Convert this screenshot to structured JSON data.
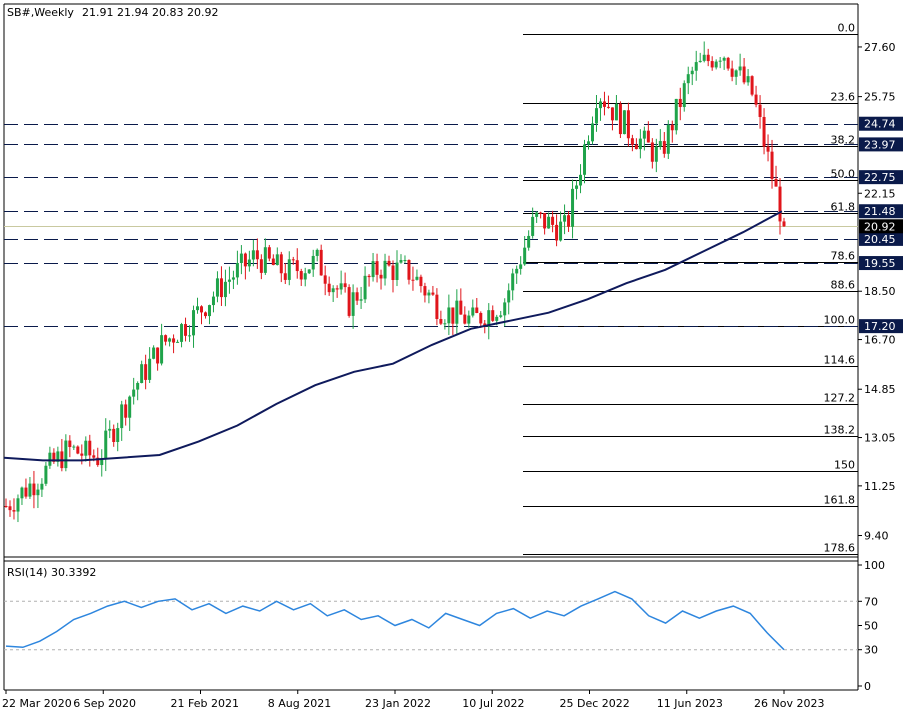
{
  "header": {
    "symbol": "SB#,Weekly",
    "ohlc": "21.91 21.94 20.83 20.92"
  },
  "colors": {
    "bull": "#1fa34a",
    "bear": "#e0151b",
    "ma": "#0f1a5c",
    "fib": "#000000",
    "hline": "#0a1a4a",
    "price_tag_bg": "#0a1a4a",
    "current_tag_bg": "#000000",
    "rsi": "#2e86de",
    "rsi_level": "#b0b0b0"
  },
  "chart_data": [
    {
      "type": "candlestick",
      "title": "SB#,Weekly",
      "ylim": [
        8.6,
        29.2
      ],
      "price_axis_ticks": [
        "27.60",
        "25.75",
        "22.15",
        "18.50",
        "16.70",
        "14.85",
        "13.05",
        "11.25",
        "9.40"
      ],
      "x_tick_labels": [
        "22 Mar 2020",
        "6 Sep 2020",
        "21 Feb 2021",
        "8 Aug 2021",
        "23 Jan 2022",
        "10 Jul 2022",
        "25 Dec 2022",
        "11 Jun 2023",
        "26 Nov 2023"
      ],
      "close_anchors": [
        10.5,
        11.5,
        12.6,
        12.3,
        14.7,
        16.5,
        17.5,
        18.8,
        19.8,
        19.2,
        19.6,
        18.0,
        19.4,
        19.2,
        17.8,
        17.4,
        18.1,
        21.2,
        20.8,
        26.0,
        24.5,
        23.5,
        26.6,
        27.5,
        25.8,
        20.92
      ],
      "moving_average": [
        12.3,
        12.2,
        12.2,
        12.3,
        12.4,
        12.9,
        13.5,
        14.3,
        15.0,
        15.5,
        15.8,
        16.5,
        17.1,
        17.4,
        17.7,
        18.2,
        18.8,
        19.3,
        20.0,
        20.7,
        21.48
      ],
      "fibonacci_levels": [
        {
          "label": "0.0",
          "price": 28.1
        },
        {
          "label": "23.6",
          "price": 25.5
        },
        {
          "label": "38.2",
          "price": 23.9
        },
        {
          "label": "50.0",
          "price": 22.65
        },
        {
          "label": "61.8",
          "price": 21.4
        },
        {
          "label": "78.6",
          "price": 19.6
        },
        {
          "label": "88.6",
          "price": 18.5
        },
        {
          "label": "100.0",
          "price": 17.2
        },
        {
          "label": "114.6",
          "price": 15.7
        },
        {
          "label": "127.2",
          "price": 14.3
        },
        {
          "label": "138.2",
          "price": 13.1
        },
        {
          "label": "150",
          "price": 11.8
        },
        {
          "label": "161.8",
          "price": 10.5
        },
        {
          "label": "178.6",
          "price": 8.7
        }
      ],
      "horizontal_levels": [
        "24.74",
        "23.97",
        "22.75",
        "21.48",
        "20.45",
        "19.55",
        "17.20"
      ],
      "current_price": "20.92"
    },
    {
      "type": "line",
      "title": "RSI(14) 30.3392",
      "ylim": [
        0,
        100
      ],
      "axis_ticks": [
        "100",
        "70",
        "50",
        "30",
        "0"
      ],
      "levels": [
        70,
        30
      ],
      "values": [
        33,
        32,
        37,
        45,
        55,
        60,
        66,
        70,
        65,
        70,
        72,
        63,
        68,
        60,
        66,
        62,
        70,
        63,
        68,
        58,
        63,
        55,
        58,
        50,
        55,
        48,
        60,
        55,
        50,
        60,
        64,
        56,
        62,
        58,
        66,
        72,
        78,
        72,
        58,
        52,
        62,
        56,
        62,
        66,
        60,
        44,
        30
      ]
    }
  ]
}
